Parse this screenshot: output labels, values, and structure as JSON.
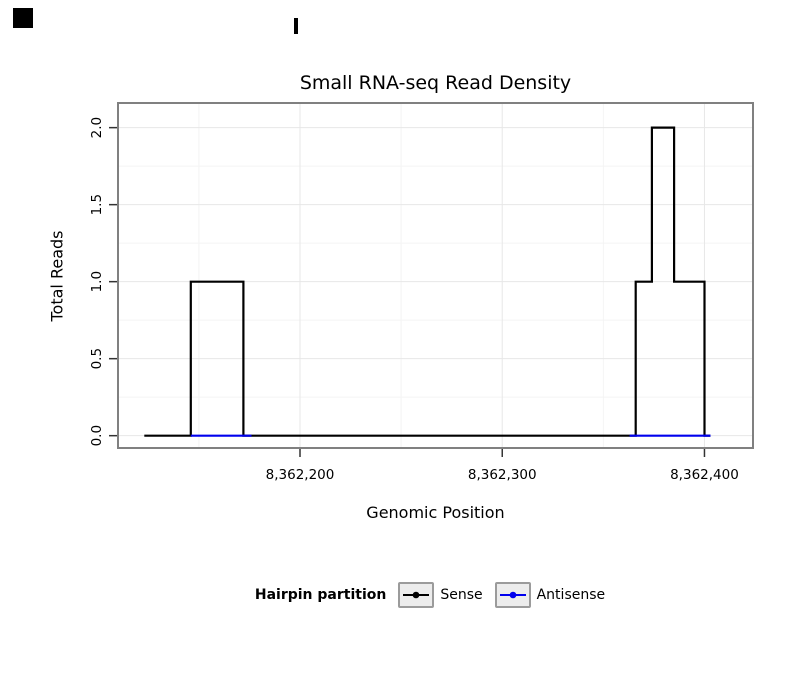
{
  "style": {
    "background": "#ffffff",
    "panel_border": "#808080",
    "grid_major": "#e7e7e7",
    "grid_minor": "#f4f4f4",
    "tick_color": "#333333",
    "text_color": "#000000"
  },
  "chart_data": {
    "type": "line",
    "subtype": "step",
    "title": "Small RNA-seq Read Density",
    "xlabel": "Genomic Position",
    "ylabel": "Total Reads",
    "grid": true,
    "xlim": [
      8362110,
      8362424
    ],
    "ylim": [
      -0.08,
      2.16
    ],
    "x_ticks": [
      {
        "value": 8362200,
        "label": "8,362,200"
      },
      {
        "value": 8362300,
        "label": "8,362,300"
      },
      {
        "value": 8362400,
        "label": "8,362,400"
      }
    ],
    "y_ticks": [
      {
        "value": 0.0,
        "label": "0.0"
      },
      {
        "value": 0.5,
        "label": "0.5"
      },
      {
        "value": 1.0,
        "label": "1.0"
      },
      {
        "value": 1.5,
        "label": "1.5"
      },
      {
        "value": 2.0,
        "label": "2.0"
      }
    ],
    "x_minor": [
      8362150,
      8362250,
      8362350
    ],
    "y_minor": [
      0.25,
      0.75,
      1.25,
      1.75
    ],
    "legend": {
      "title": "Hairpin partition",
      "position": "bottom"
    },
    "series": [
      {
        "name": "Sense",
        "color": "#000000",
        "lines": [
          [
            [
              8362123,
              0
            ],
            [
              8362146,
              0
            ],
            [
              8362146,
              1
            ],
            [
              8362172,
              1
            ],
            [
              8362172,
              0
            ],
            [
              8362366,
              0
            ],
            [
              8362366,
              1
            ],
            [
              8362374,
              1
            ],
            [
              8362374,
              2
            ],
            [
              8362385,
              2
            ],
            [
              8362385,
              1
            ],
            [
              8362400,
              1
            ],
            [
              8362400,
              0
            ],
            [
              8362403,
              0
            ]
          ]
        ]
      },
      {
        "name": "Antisense",
        "color": "#0000EE",
        "lines": [
          [
            [
              8362146,
              0
            ],
            [
              8362176,
              0
            ]
          ],
          [
            [
              8362363,
              0
            ],
            [
              8362403,
              0
            ]
          ]
        ]
      }
    ]
  }
}
